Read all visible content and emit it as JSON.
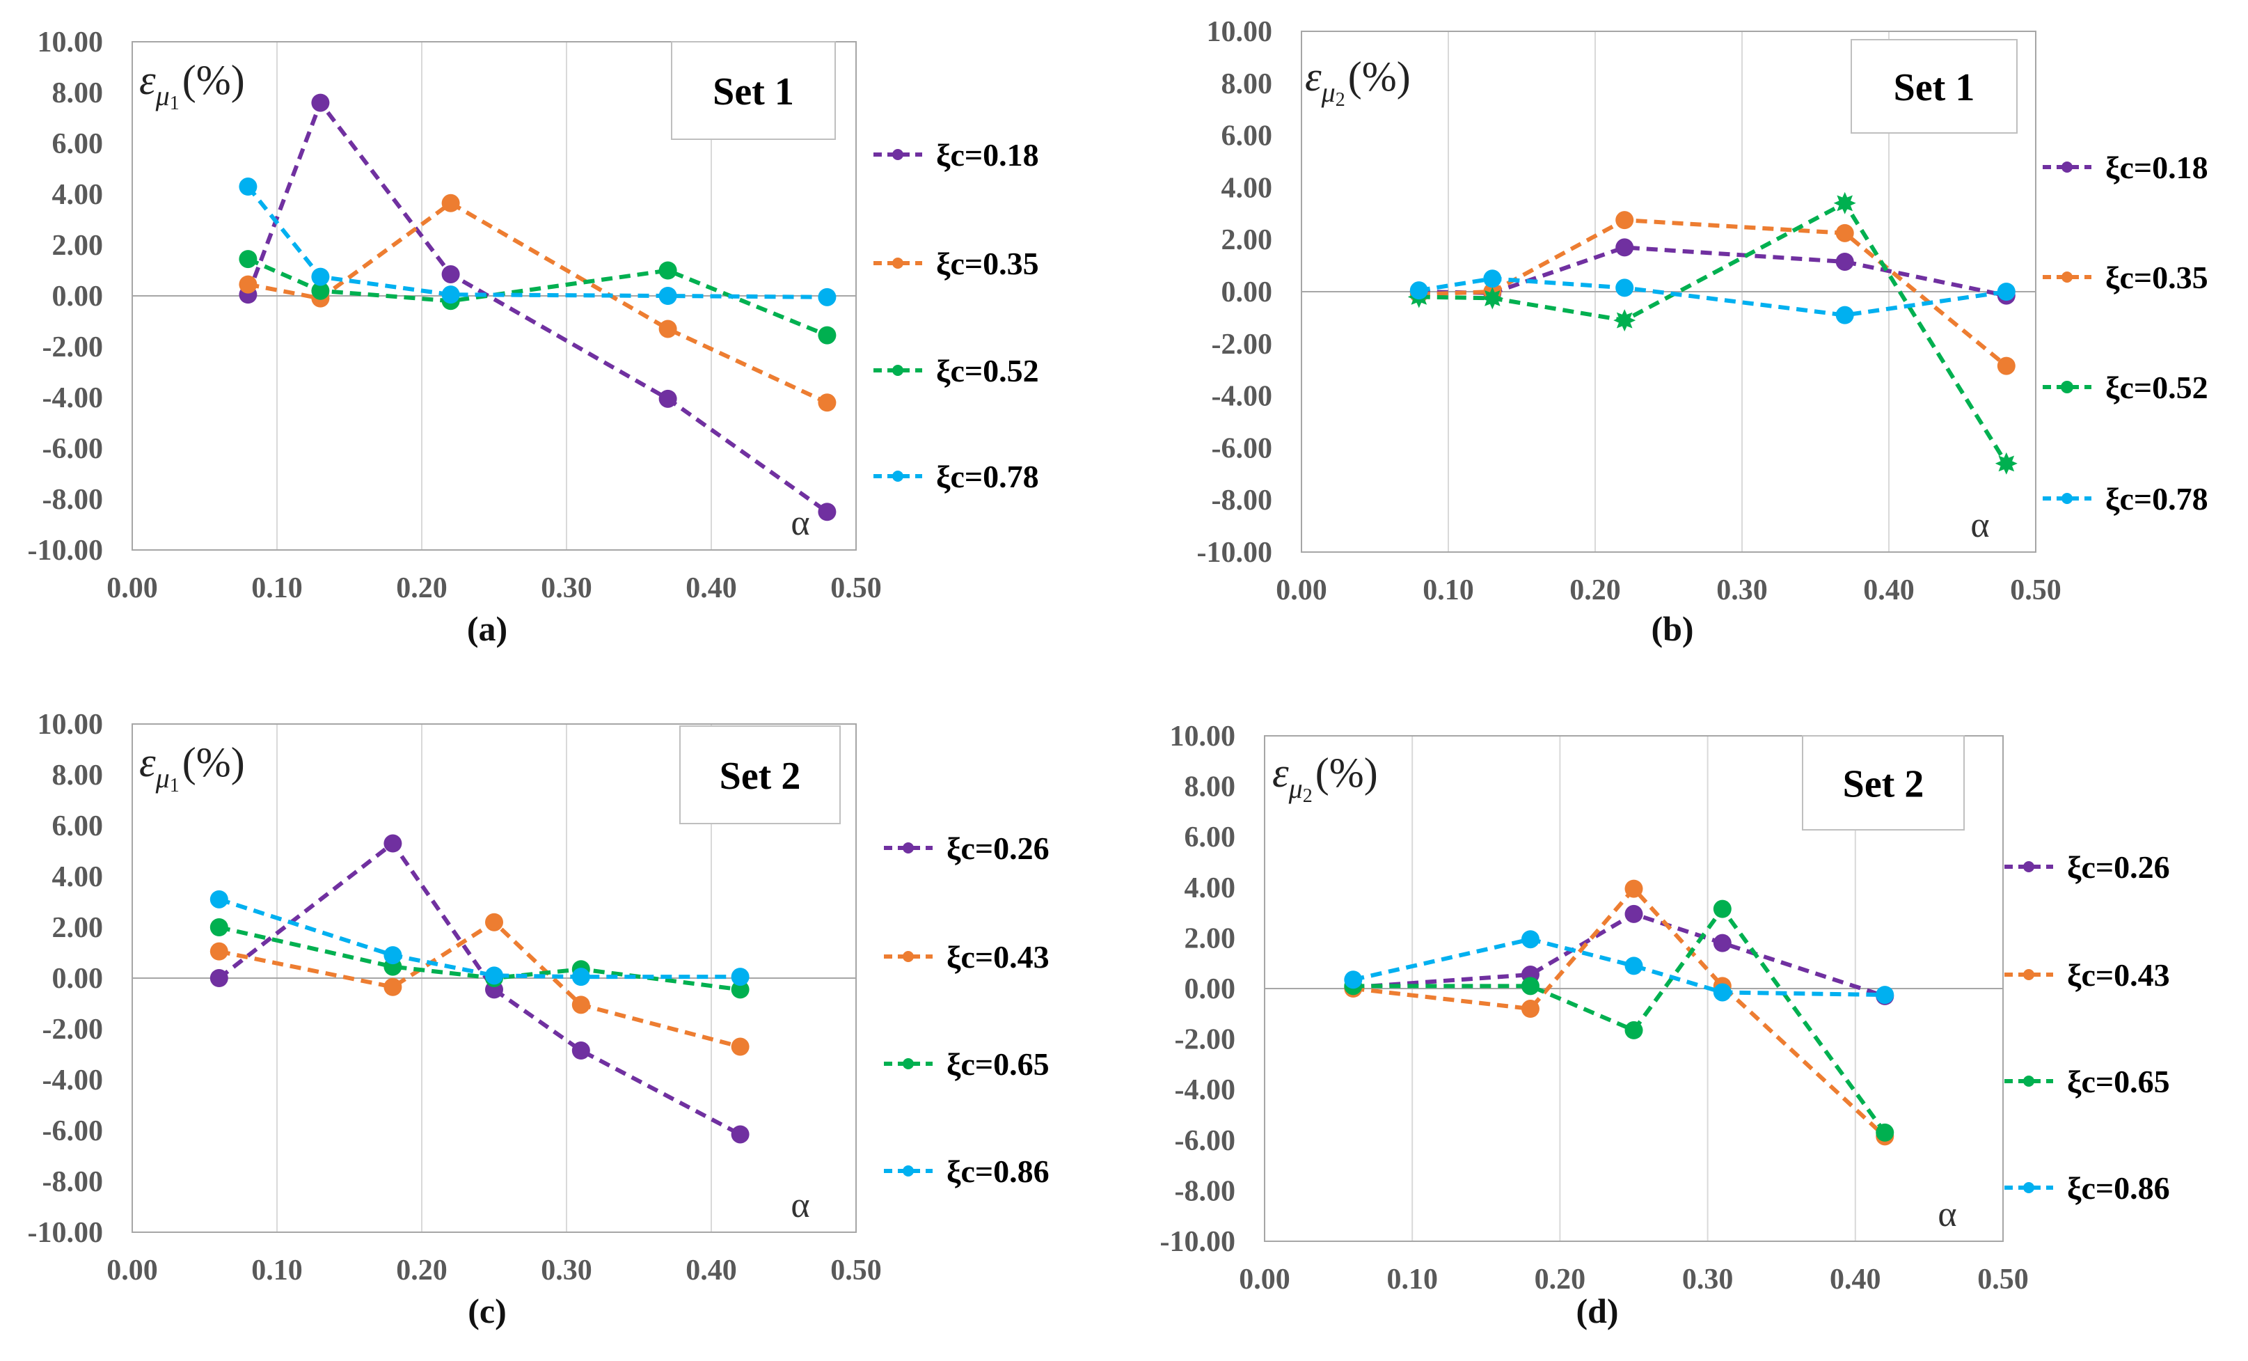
{
  "chart_data": [
    {
      "type": "line",
      "panel": "(a)",
      "set_label": "Set 1",
      "ylabel": {
        "symbol": "ε",
        "subscript_base": "μ",
        "subscript_index": "1",
        "unit": "(%)"
      },
      "xlabel": "α",
      "xlim": [
        0.0,
        0.5
      ],
      "ylim": [
        -10.0,
        10.0
      ],
      "x_ticks": [
        "0.00",
        "0.10",
        "0.20",
        "0.30",
        "0.40",
        "0.50"
      ],
      "y_ticks": [
        "10.00",
        "8.00",
        "6.00",
        "4.00",
        "2.00",
        "0.00",
        "-2.00",
        "-4.00",
        "-6.00",
        "-8.00",
        "-10.00"
      ],
      "x": [
        0.08,
        0.13,
        0.22,
        0.37,
        0.48
      ],
      "series": [
        {
          "name": "ξc=0.18",
          "color": "#7030A0",
          "marker": "circle",
          "values": [
            0.05,
            7.6,
            0.85,
            -4.05,
            -8.5
          ]
        },
        {
          "name": "ξc=0.35",
          "color": "#ED7D31",
          "marker": "circle",
          "values": [
            0.45,
            -0.1,
            3.65,
            -1.3,
            -4.2
          ]
        },
        {
          "name": "ξc=0.52",
          "color": "#00B050",
          "marker": "circle",
          "values": [
            1.45,
            0.2,
            -0.2,
            1.0,
            -1.55
          ]
        },
        {
          "name": "ξc=0.78",
          "color": "#00B0F0",
          "marker": "circle",
          "values": [
            4.3,
            0.75,
            0.05,
            0.0,
            -0.05
          ]
        }
      ]
    },
    {
      "type": "line",
      "panel": "(b)",
      "set_label": "Set 1",
      "ylabel": {
        "symbol": "ε",
        "subscript_base": "μ",
        "subscript_index": "2",
        "unit": "(%)"
      },
      "xlabel": "α",
      "xlim": [
        0.0,
        0.5
      ],
      "ylim": [
        -10.0,
        10.0
      ],
      "x_ticks": [
        "0.00",
        "0.10",
        "0.20",
        "0.30",
        "0.40",
        "0.50"
      ],
      "y_ticks": [
        "10.00",
        "8.00",
        "6.00",
        "4.00",
        "2.00",
        "0.00",
        "-2.00",
        "-4.00",
        "-6.00",
        "-8.00",
        "-10.00"
      ],
      "x": [
        0.08,
        0.13,
        0.22,
        0.37,
        0.48
      ],
      "series": [
        {
          "name": "ξc=0.18",
          "color": "#7030A0",
          "marker": "circle",
          "values": [
            0.0,
            -0.05,
            1.7,
            1.15,
            -0.15
          ]
        },
        {
          "name": "ξc=0.35",
          "color": "#ED7D31",
          "marker": "circle",
          "values": [
            -0.1,
            0.0,
            2.75,
            2.25,
            -2.85
          ]
        },
        {
          "name": "ξc=0.52",
          "color": "#00B050",
          "marker": "star",
          "values": [
            -0.2,
            -0.25,
            -1.1,
            3.4,
            -6.6
          ]
        },
        {
          "name": "ξc=0.78",
          "color": "#00B0F0",
          "marker": "circle",
          "values": [
            0.05,
            0.5,
            0.15,
            -0.9,
            0.0
          ]
        }
      ]
    },
    {
      "type": "line",
      "panel": "(c)",
      "set_label": "Set 2",
      "ylabel": {
        "symbol": "ε",
        "subscript_base": "μ",
        "subscript_index": "1",
        "unit": "(%)"
      },
      "xlabel": "α",
      "xlim": [
        0.0,
        0.5
      ],
      "ylim": [
        -10.0,
        10.0
      ],
      "x_ticks": [
        "0.00",
        "0.10",
        "0.20",
        "0.30",
        "0.40",
        "0.50"
      ],
      "y_ticks": [
        "10.00",
        "8.00",
        "6.00",
        "4.00",
        "2.00",
        "0.00",
        "-2.00",
        "-4.00",
        "-6.00",
        "-8.00",
        "-10.00"
      ],
      "x": [
        0.06,
        0.18,
        0.25,
        0.31,
        0.42
      ],
      "series": [
        {
          "name": "ξc=0.26",
          "color": "#7030A0",
          "marker": "circle",
          "values": [
            0.0,
            5.3,
            -0.45,
            -2.85,
            -6.15
          ]
        },
        {
          "name": "ξc=0.43",
          "color": "#ED7D31",
          "marker": "circle",
          "values": [
            1.05,
            -0.35,
            2.2,
            -1.05,
            -2.7
          ]
        },
        {
          "name": "ξc=0.65",
          "color": "#00B050",
          "marker": "circle",
          "values": [
            2.0,
            0.45,
            0.0,
            0.35,
            -0.45
          ]
        },
        {
          "name": "ξc=0.86",
          "color": "#00B0F0",
          "marker": "circle",
          "values": [
            3.1,
            0.9,
            0.1,
            0.05,
            0.05
          ]
        }
      ]
    },
    {
      "type": "line",
      "panel": "(d)",
      "set_label": "Set 2",
      "ylabel": {
        "symbol": "ε",
        "subscript_base": "μ",
        "subscript_index": "2",
        "unit": "(%)"
      },
      "xlabel": "α",
      "xlim": [
        0.0,
        0.5
      ],
      "ylim": [
        -10.0,
        10.0
      ],
      "x_ticks": [
        "0.00",
        "0.10",
        "0.20",
        "0.30",
        "0.40",
        "0.50"
      ],
      "y_ticks": [
        "10.00",
        "8.00",
        "6.00",
        "4.00",
        "2.00",
        "0.00",
        "-2.00",
        "-4.00",
        "-6.00",
        "-8.00",
        "-10.00"
      ],
      "x": [
        0.06,
        0.18,
        0.25,
        0.31,
        0.42
      ],
      "series": [
        {
          "name": "ξc=0.26",
          "color": "#7030A0",
          "marker": "circle",
          "values": [
            0.05,
            0.55,
            2.95,
            1.8,
            -0.3
          ]
        },
        {
          "name": "ξc=0.43",
          "color": "#ED7D31",
          "marker": "circle",
          "values": [
            0.0,
            -0.8,
            3.95,
            0.1,
            -5.85
          ]
        },
        {
          "name": "ξc=0.65",
          "color": "#00B050",
          "marker": "circle",
          "values": [
            0.1,
            0.1,
            -1.65,
            3.15,
            -5.7
          ]
        },
        {
          "name": "ξc=0.86",
          "color": "#00B0F0",
          "marker": "circle",
          "values": [
            0.35,
            1.95,
            0.9,
            -0.15,
            -0.25
          ]
        }
      ]
    }
  ]
}
